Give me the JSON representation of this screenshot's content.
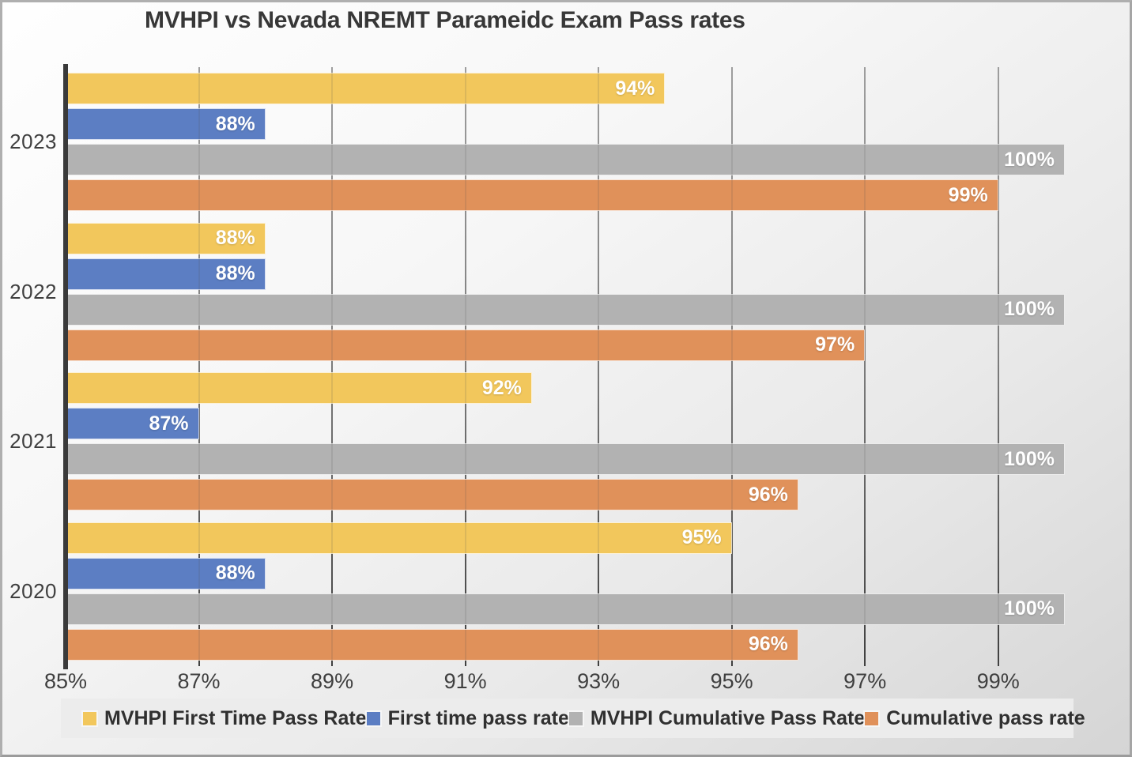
{
  "title": "MVHPI vs Nevada NREMT Parameidc Exam Pass rates",
  "chart_data": {
    "type": "bar",
    "orientation": "horizontal",
    "title": "MVHPI vs Nevada NREMT Parameidc Exam Pass rates",
    "categories": [
      "2023",
      "2022",
      "2021",
      "2020"
    ],
    "series": [
      {
        "name": "MVHPI First Time Pass Rate",
        "color": "#F2C75C",
        "values": [
          94,
          88,
          92,
          95
        ]
      },
      {
        "name": "First time pass rate",
        "color": "#5C7EC3",
        "values": [
          88,
          88,
          87,
          88
        ]
      },
      {
        "name": "MVHPI Cumulative Pass Rate",
        "color": "#B2B2B2",
        "values": [
          100,
          100,
          100,
          100
        ]
      },
      {
        "name": "Cumulative pass rate",
        "color": "#E0915A",
        "values": [
          99,
          97,
          96,
          96
        ]
      }
    ],
    "value_axis": {
      "min": 85,
      "max": 100,
      "tick_values": [
        85,
        87,
        89,
        91,
        93,
        95,
        97,
        99
      ],
      "tick_labels": [
        "85%",
        "87%",
        "89%",
        "91%",
        "93%",
        "95%",
        "97%",
        "99%"
      ]
    },
    "data_labels": {
      "format": "{value}%",
      "position": "inside-end",
      "color": "#FFFFFF"
    },
    "legend_position": "bottom",
    "grid": true,
    "style": {
      "legend_background": "#ECECEC",
      "axis_line_color": "#3A3A3A",
      "gridline_color_top": "#ABABAB",
      "gridline_color_bottom": "#3E3E3E",
      "title_color": "#373737",
      "tick_label_color": "#3F3F3F",
      "category_label_color": "#3F3F3F"
    }
  }
}
